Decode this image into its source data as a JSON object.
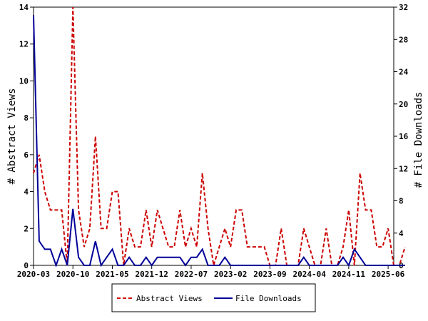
{
  "chart_data": {
    "type": "line",
    "title": "",
    "ylabel_left": "# Abstract Views",
    "ylabel_right": "# File Downloads",
    "ylim_left": [
      0,
      14
    ],
    "ylim_right": [
      0,
      32
    ],
    "yticks_left": [
      0,
      2,
      4,
      6,
      8,
      10,
      12,
      14
    ],
    "yticks_right": [
      0,
      4,
      8,
      12,
      16,
      20,
      24,
      28,
      32
    ],
    "x_start": "2020-03",
    "x_end": "2025-07",
    "x_tick_labels": [
      "2020-03",
      "2020-10",
      "2021-05",
      "2021-12",
      "2022-07",
      "2023-02",
      "2023-09",
      "2024-04",
      "2024-11",
      "2025-06"
    ],
    "legend_position": "bottom-center",
    "series": [
      {
        "name": "Abstract Views",
        "axis": "left",
        "color": "#cc0000",
        "style": "dashed",
        "points": [
          [
            "2020-03",
            5
          ],
          [
            "2020-04",
            6
          ],
          [
            "2020-05",
            4
          ],
          [
            "2020-06",
            3
          ],
          [
            "2020-07",
            3
          ],
          [
            "2020-08",
            3
          ],
          [
            "2020-09",
            0
          ],
          [
            "2020-10",
            14
          ],
          [
            "2020-11",
            3
          ],
          [
            "2020-12",
            1
          ],
          [
            "2021-01",
            2
          ],
          [
            "2021-02",
            7
          ],
          [
            "2021-03",
            2
          ],
          [
            "2021-04",
            2
          ],
          [
            "2021-05",
            4
          ],
          [
            "2021-06",
            4
          ],
          [
            "2021-07",
            0
          ],
          [
            "2021-08",
            2
          ],
          [
            "2021-09",
            1
          ],
          [
            "2021-10",
            1
          ],
          [
            "2021-11",
            3
          ],
          [
            "2021-12",
            1
          ],
          [
            "2022-01",
            3
          ],
          [
            "2022-02",
            2
          ],
          [
            "2022-03",
            1
          ],
          [
            "2022-04",
            1
          ],
          [
            "2022-05",
            3
          ],
          [
            "2022-06",
            1
          ],
          [
            "2022-07",
            2
          ],
          [
            "2022-08",
            1
          ],
          [
            "2022-09",
            5
          ],
          [
            "2022-10",
            2
          ],
          [
            "2022-11",
            0
          ],
          [
            "2022-12",
            1
          ],
          [
            "2023-01",
            2
          ],
          [
            "2023-02",
            1
          ],
          [
            "2023-03",
            3
          ],
          [
            "2023-04",
            3
          ],
          [
            "2023-05",
            1
          ],
          [
            "2023-06",
            1
          ],
          [
            "2023-07",
            1
          ],
          [
            "2023-08",
            1
          ],
          [
            "2023-09",
            0
          ],
          [
            "2023-10",
            0
          ],
          [
            "2023-11",
            2
          ],
          [
            "2023-12",
            0
          ],
          [
            "2024-01",
            0
          ],
          [
            "2024-02",
            0
          ],
          [
            "2024-03",
            2
          ],
          [
            "2024-04",
            1
          ],
          [
            "2024-05",
            0
          ],
          [
            "2024-06",
            0
          ],
          [
            "2024-07",
            2
          ],
          [
            "2024-08",
            0
          ],
          [
            "2024-09",
            0
          ],
          [
            "2024-10",
            1
          ],
          [
            "2024-11",
            3
          ],
          [
            "2024-12",
            0
          ],
          [
            "2025-01",
            5
          ],
          [
            "2025-02",
            3
          ],
          [
            "2025-03",
            3
          ],
          [
            "2025-04",
            1
          ],
          [
            "2025-05",
            1
          ],
          [
            "2025-06",
            2
          ],
          [
            "2025-07",
            0
          ],
          [
            "2025-08",
            0
          ],
          [
            "2025-09",
            1
          ]
        ]
      },
      {
        "name": "File Downloads",
        "axis": "right",
        "color": "#000099",
        "style": "solid",
        "points": [
          [
            "2020-03",
            31
          ],
          [
            "2020-04",
            3
          ],
          [
            "2020-05",
            2
          ],
          [
            "2020-06",
            2
          ],
          [
            "2020-07",
            0
          ],
          [
            "2020-08",
            2
          ],
          [
            "2020-09",
            0
          ],
          [
            "2020-10",
            7
          ],
          [
            "2020-11",
            1
          ],
          [
            "2020-12",
            0
          ],
          [
            "2021-01",
            0
          ],
          [
            "2021-02",
            3
          ],
          [
            "2021-03",
            0
          ],
          [
            "2021-04",
            1
          ],
          [
            "2021-05",
            2
          ],
          [
            "2021-06",
            0
          ],
          [
            "2021-07",
            0
          ],
          [
            "2021-08",
            1
          ],
          [
            "2021-09",
            0
          ],
          [
            "2021-10",
            0
          ],
          [
            "2021-11",
            1
          ],
          [
            "2021-12",
            0
          ],
          [
            "2022-01",
            1
          ],
          [
            "2022-02",
            1
          ],
          [
            "2022-03",
            1
          ],
          [
            "2022-04",
            1
          ],
          [
            "2022-05",
            1
          ],
          [
            "2022-06",
            0
          ],
          [
            "2022-07",
            1
          ],
          [
            "2022-08",
            1
          ],
          [
            "2022-09",
            2
          ],
          [
            "2022-10",
            0
          ],
          [
            "2022-11",
            0
          ],
          [
            "2022-12",
            0
          ],
          [
            "2023-01",
            1
          ],
          [
            "2023-02",
            0
          ],
          [
            "2023-03",
            0
          ],
          [
            "2023-04",
            0
          ],
          [
            "2023-05",
            0
          ],
          [
            "2023-06",
            0
          ],
          [
            "2023-07",
            0
          ],
          [
            "2023-08",
            0
          ],
          [
            "2023-09",
            0
          ],
          [
            "2023-10",
            0
          ],
          [
            "2023-11",
            0
          ],
          [
            "2023-12",
            0
          ],
          [
            "2024-01",
            0
          ],
          [
            "2024-02",
            0
          ],
          [
            "2024-03",
            1
          ],
          [
            "2024-04",
            0
          ],
          [
            "2024-05",
            0
          ],
          [
            "2024-06",
            0
          ],
          [
            "2024-07",
            0
          ],
          [
            "2024-08",
            0
          ],
          [
            "2024-09",
            0
          ],
          [
            "2024-10",
            1
          ],
          [
            "2024-11",
            0
          ],
          [
            "2024-12",
            2
          ],
          [
            "2025-01",
            1
          ],
          [
            "2025-02",
            0
          ],
          [
            "2025-03",
            0
          ],
          [
            "2025-04",
            0
          ],
          [
            "2025-05",
            0
          ],
          [
            "2025-06",
            0
          ],
          [
            "2025-07",
            0
          ],
          [
            "2025-08",
            0
          ],
          [
            "2025-09",
            0
          ]
        ]
      }
    ]
  }
}
